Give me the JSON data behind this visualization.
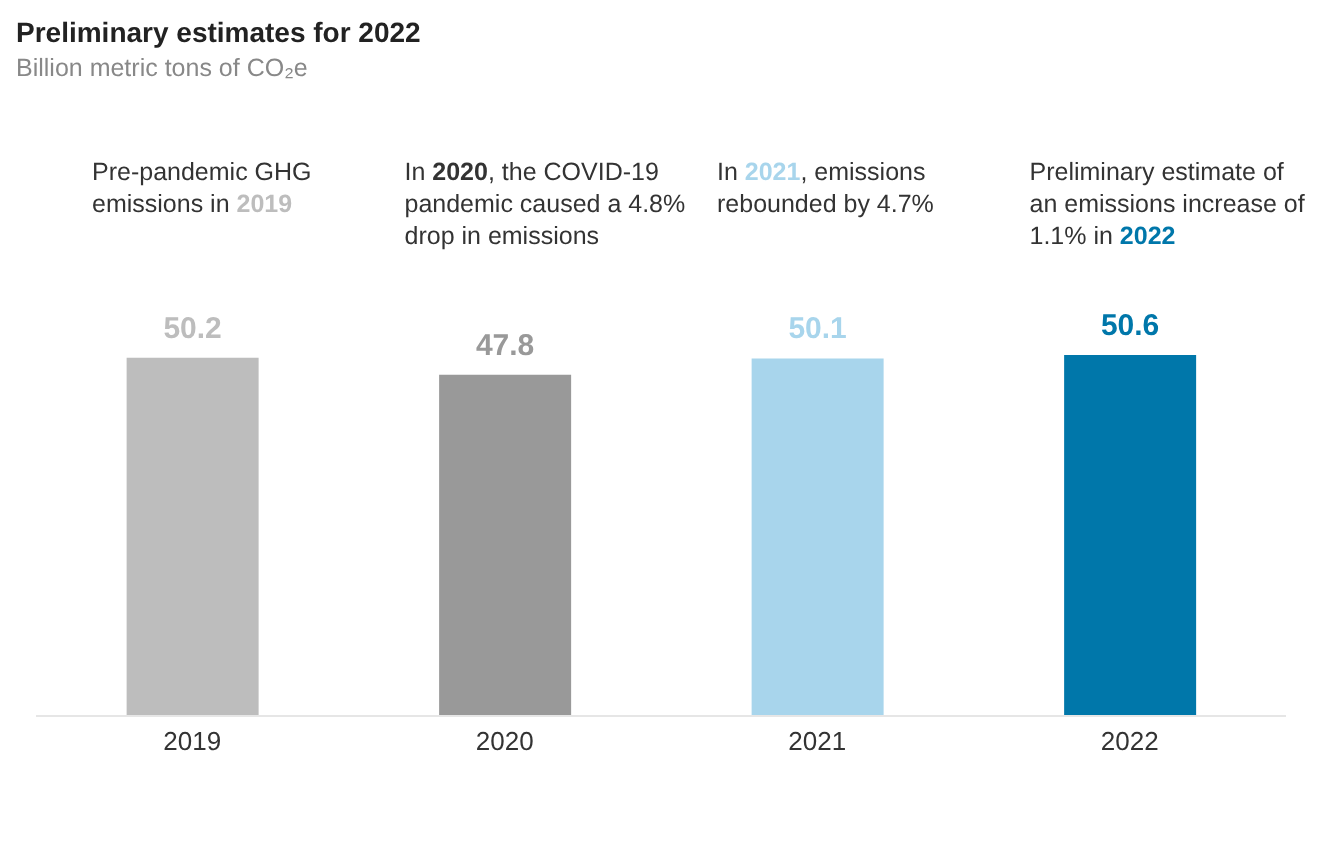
{
  "chart_data": {
    "type": "bar",
    "title": "Preliminary estimates for 2022",
    "subtitle": "Billion metric tons of CO₂e",
    "categories": [
      "2019",
      "2020",
      "2021",
      "2022"
    ],
    "values": [
      50.2,
      47.8,
      50.1,
      50.6
    ],
    "colors": [
      "#bdbdbd",
      "#999999",
      "#a8d5ec",
      "#0077aa"
    ],
    "data_labels": true,
    "grid": false,
    "legend": false,
    "annotations": [
      "Pre-pandemic GHG emissions in 2019",
      "In 2020, the COVID-19 pandemic caused a 4.8% drop in emissions",
      "In 2021, emissions rebounded by 4.7%",
      "Preliminary estimate of an emissions increase of 1.1% in 2022"
    ]
  }
}
